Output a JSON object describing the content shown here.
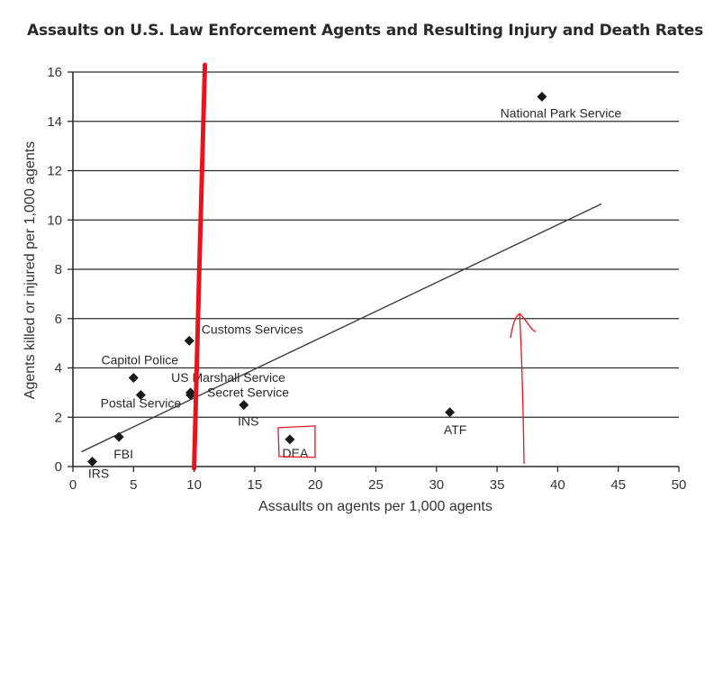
{
  "chart_data": {
    "type": "scatter",
    "title": "Assaults on U.S. Law Enforcement Agents and Resulting Injury and Death Rates",
    "xlabel": "Assaults on agents per 1,000 agents",
    "ylabel": "Agents killed or injured per 1,000 agents",
    "xlim": [
      0,
      50
    ],
    "ylim": [
      0,
      16
    ],
    "xticks": [
      0,
      5,
      10,
      15,
      20,
      25,
      30,
      35,
      40,
      45,
      50
    ],
    "yticks": [
      0,
      2,
      4,
      6,
      8,
      10,
      12,
      14,
      16
    ],
    "grid": "horizontal",
    "points": [
      {
        "label": "IRS",
        "x": 1.6,
        "y": 0.2
      },
      {
        "label": "FBI",
        "x": 3.8,
        "y": 1.2
      },
      {
        "label": "Postal Service",
        "x": 5.6,
        "y": 2.9
      },
      {
        "label": "Capitol Police",
        "x": 5.0,
        "y": 3.6
      },
      {
        "label": "US Marshall Service",
        "x": 9.7,
        "y": 3.0
      },
      {
        "label": "Secret Service",
        "x": 9.7,
        "y": 2.9
      },
      {
        "label": "Customs Services",
        "x": 9.6,
        "y": 5.1
      },
      {
        "label": "INS",
        "x": 14.1,
        "y": 2.5
      },
      {
        "label": "DEA",
        "x": 17.9,
        "y": 1.1
      },
      {
        "label": "ATF",
        "x": 31.1,
        "y": 2.2
      },
      {
        "label": "National Park Service",
        "x": 38.7,
        "y": 15.0
      }
    ],
    "trendline": {
      "x": [
        0.7,
        43.6
      ],
      "y": [
        0.6,
        10.65
      ]
    },
    "annotations": [
      {
        "type": "vertical-line",
        "x": 10,
        "color": "#e8141c"
      },
      {
        "type": "box",
        "target": "DEA",
        "color": "#e8141c"
      },
      {
        "type": "arrow-up",
        "x": 37,
        "from_y": 0,
        "to_y": 6.2,
        "color": "#e8141c"
      }
    ]
  }
}
